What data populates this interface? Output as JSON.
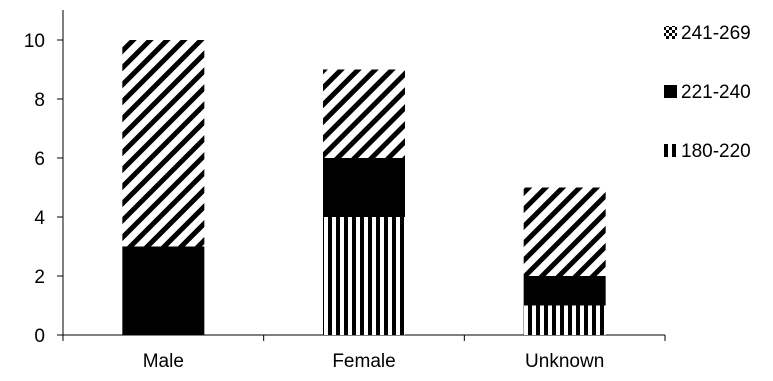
{
  "chart_data": {
    "type": "bar",
    "stacked": true,
    "categories": [
      "Male",
      "Female",
      "Unknown"
    ],
    "series": [
      {
        "name": "180-220",
        "values": [
          0,
          4,
          1
        ],
        "pattern": "vertical-stripes",
        "color": "#000000"
      },
      {
        "name": "221-240",
        "values": [
          3,
          2,
          1
        ],
        "pattern": "solid",
        "color": "#000000"
      },
      {
        "name": "241-269",
        "values": [
          7,
          3,
          3
        ],
        "pattern": "diagonal-stripes",
        "color": "#000000"
      }
    ],
    "ylim": [
      0,
      10
    ],
    "yticks": [
      "0",
      "2",
      "4",
      "6",
      "8",
      "10"
    ],
    "legend": {
      "position": "right",
      "order": [
        "241-269",
        "221-240",
        "180-220"
      ]
    },
    "grid": false,
    "title": "",
    "xlabel": "",
    "ylabel": ""
  }
}
